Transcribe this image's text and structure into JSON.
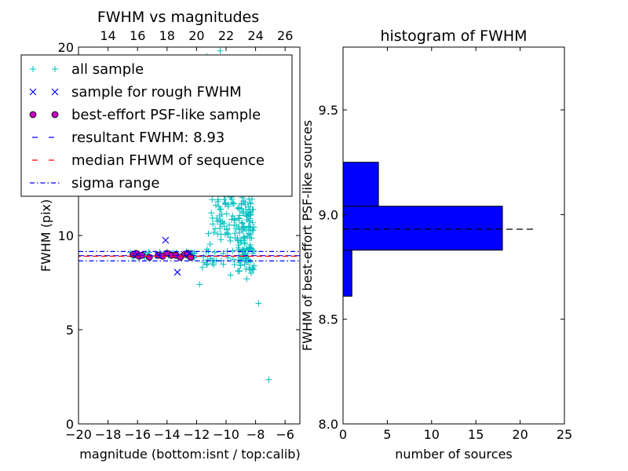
{
  "chart_data": [
    {
      "type": "scatter",
      "title": "FWHM vs magnitudes",
      "xlabel": "magnitude (bottom:isnt / top:calib)",
      "ylabel": "FWHM (pix)",
      "xlim": [
        -20,
        -5
      ],
      "ylim": [
        0,
        20
      ],
      "xticks": [
        -20,
        -18,
        -16,
        -14,
        -12,
        -10,
        -8,
        -6
      ],
      "xtick_labels": [
        "−20",
        "−18",
        "−16",
        "−14",
        "−12",
        "−10",
        "−8",
        "−6"
      ],
      "yticks": [
        0,
        5,
        10,
        20
      ],
      "top_axis": {
        "xlim": [
          12,
          27
        ],
        "ticks": [
          14,
          16,
          18,
          20,
          22,
          24,
          26
        ],
        "tick_labels": [
          "14",
          "16",
          "18",
          "20",
          "22",
          "24",
          "26"
        ]
      },
      "grid": false,
      "legend_position": "upper-left",
      "colors": {
        "all": "#00bfbf",
        "rough": "#0000ff",
        "best": "#bf00bf",
        "fwhm_line": "#0000ff",
        "median_line": "#ff0000",
        "sigma_line": "#0000ff"
      },
      "legend": [
        {
          "label": "all sample",
          "marker": "plus"
        },
        {
          "label": "sample for rough FWHM",
          "marker": "x"
        },
        {
          "label": "best-effort PSF-like sample",
          "marker": "circle"
        },
        {
          "label": "resultant FWHM: 8.93",
          "marker": "dashed"
        },
        {
          "label": "median FHWM of sequence",
          "marker": "dashed-red"
        },
        {
          "label": "sigma range",
          "marker": "dashdot"
        }
      ],
      "lines": {
        "fwhm": 8.93,
        "median": 8.9,
        "sigma_low": 8.65,
        "sigma_high": 9.15
      },
      "series": {
        "rough_sample": [
          [
            -14.1,
            9.75
          ],
          [
            -13.3,
            8.05
          ],
          [
            -12.5,
            9.05
          ],
          [
            -16.0,
            8.95
          ],
          [
            -14.6,
            8.95
          ]
        ],
        "best_sample": [
          [
            -16.3,
            9.0
          ],
          [
            -16.1,
            9.05
          ],
          [
            -15.9,
            8.9
          ],
          [
            -15.7,
            8.95
          ],
          [
            -15.2,
            8.85
          ],
          [
            -14.6,
            8.95
          ],
          [
            -14.3,
            8.9
          ],
          [
            -14.0,
            9.05
          ],
          [
            -13.7,
            8.95
          ],
          [
            -13.4,
            8.95
          ],
          [
            -13.1,
            8.85
          ],
          [
            -12.8,
            9.0
          ],
          [
            -12.6,
            9.05
          ],
          [
            -12.4,
            8.85
          ]
        ],
        "all_sample_outliers": [
          [
            -11.8,
            7.4
          ],
          [
            -11.3,
            19.5
          ],
          [
            -10.9,
            19.0
          ],
          [
            -10.4,
            19.8
          ],
          [
            -10.0,
            19.4
          ],
          [
            -7.8,
            6.4
          ],
          [
            -7.1,
            2.35
          ],
          [
            -11.2,
            10.1
          ],
          [
            -11.0,
            11.2
          ],
          [
            -11.6,
            8.3
          ],
          [
            -9.7,
            7.9
          ],
          [
            -8.6,
            7.7
          ],
          [
            -8.3,
            8.0
          ]
        ]
      }
    },
    {
      "type": "bar",
      "orientation": "horizontal",
      "title": "histogram of FWHM",
      "xlabel": "number of sources",
      "ylabel": "FWHM of best-effort PSF-like sources",
      "xlim": [
        0,
        25
      ],
      "ylim": [
        8.0,
        9.8
      ],
      "xticks": [
        0,
        5,
        10,
        15,
        20,
        25
      ],
      "yticks": [
        8.0,
        8.5,
        9.0,
        9.5
      ],
      "ytick_labels": [
        "8.0",
        "8.5",
        "9.0",
        "9.5"
      ],
      "grid": false,
      "bar_color": "#0000ff",
      "bins": [
        {
          "low": 8.61,
          "high": 8.83,
          "count": 1
        },
        {
          "low": 8.83,
          "high": 9.04,
          "count": 18
        },
        {
          "low": 9.04,
          "high": 9.25,
          "count": 4
        }
      ],
      "reference_line": {
        "y": 8.93,
        "x_max": 21.7,
        "style": "dashed"
      }
    }
  ]
}
